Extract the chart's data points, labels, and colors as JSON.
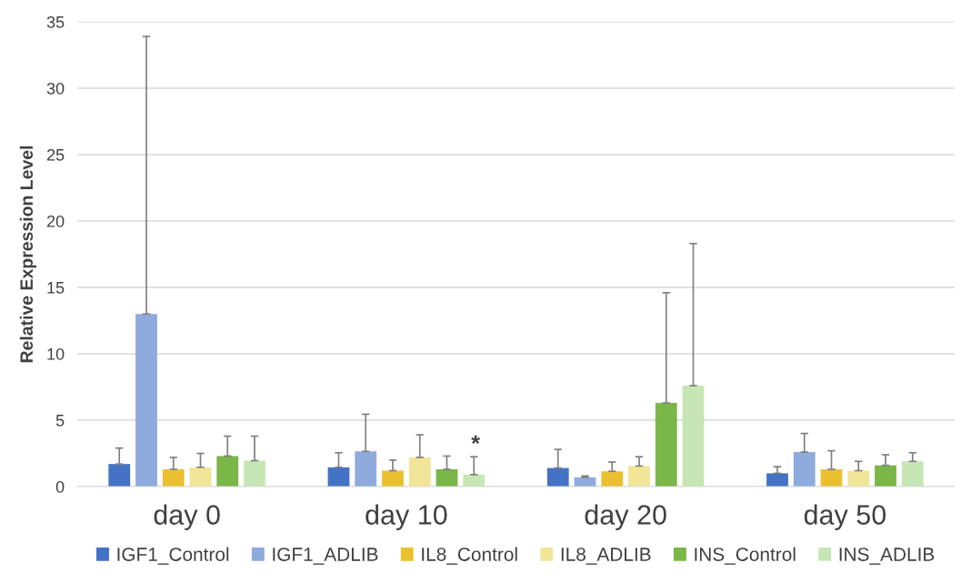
{
  "chart_data": {
    "type": "bar",
    "ylabel": "Relative Expression Level",
    "categories": [
      "day 0",
      "day 10",
      "day 20",
      "day 50"
    ],
    "series": [
      {
        "name": "IGF1_Control",
        "color": "#4472c4",
        "values": [
          1.7,
          1.45,
          1.4,
          1.0
        ],
        "errors": [
          [
            1.7,
            2.9
          ],
          [
            1.45,
            2.55
          ],
          [
            1.4,
            2.8
          ],
          [
            1.0,
            1.5
          ]
        ]
      },
      {
        "name": "IGF1_ADLIB",
        "color": "#8faadc",
        "values": [
          13.0,
          2.65,
          0.7,
          2.6
        ],
        "errors": [
          [
            13.0,
            33.9
          ],
          [
            2.65,
            5.45
          ],
          [
            0.7,
            0.8
          ],
          [
            2.6,
            4.0
          ]
        ]
      },
      {
        "name": "IL8_Control",
        "color": "#ebc030",
        "values": [
          1.3,
          1.2,
          1.15,
          1.3
        ],
        "errors": [
          [
            1.3,
            2.2
          ],
          [
            1.2,
            2.0
          ],
          [
            1.15,
            1.85
          ],
          [
            1.3,
            2.7
          ]
        ]
      },
      {
        "name": "IL8_ADLIB",
        "color": "#f1e598",
        "values": [
          1.45,
          2.2,
          1.55,
          1.2
        ],
        "errors": [
          [
            1.45,
            2.5
          ],
          [
            2.2,
            3.9
          ],
          [
            1.55,
            2.25
          ],
          [
            1.2,
            1.9
          ]
        ]
      },
      {
        "name": "INS_Control",
        "color": "#7ab648",
        "values": [
          2.3,
          1.3,
          6.3,
          1.6
        ],
        "errors": [
          [
            2.3,
            3.8
          ],
          [
            1.3,
            2.3
          ],
          [
            6.3,
            14.6
          ],
          [
            1.6,
            2.4
          ]
        ]
      },
      {
        "name": "INS_ADLIB",
        "color": "#c7e6b5",
        "values": [
          1.95,
          0.9,
          7.6,
          1.9
        ],
        "errors": [
          [
            1.95,
            3.8
          ],
          [
            0.9,
            2.25
          ],
          [
            7.6,
            18.3
          ],
          [
            1.9,
            2.55
          ]
        ]
      }
    ],
    "ylim": [
      0,
      35
    ],
    "yticks": [
      0,
      5,
      10,
      15,
      20,
      25,
      30,
      35
    ],
    "grid": "y",
    "legend": "bottom",
    "annotations": [
      "*"
    ]
  }
}
